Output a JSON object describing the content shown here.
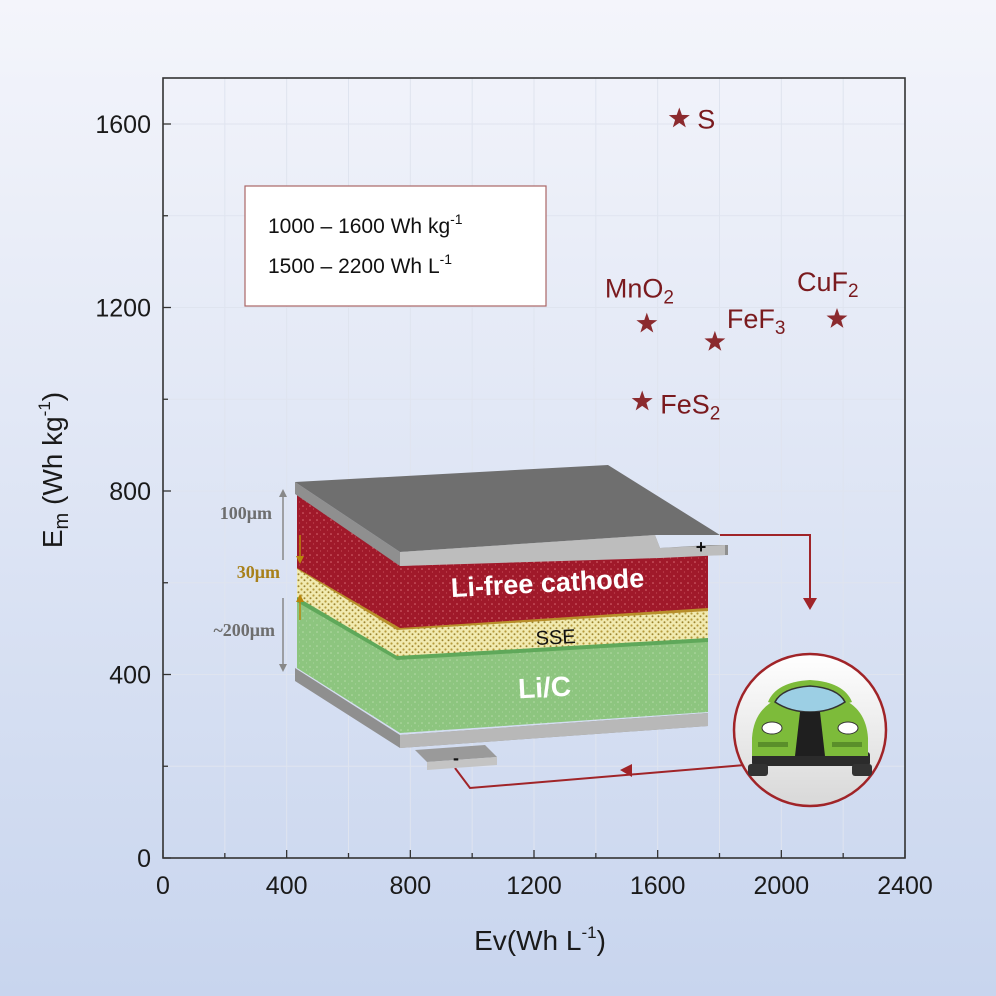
{
  "chart_data": {
    "type": "scatter",
    "xlabel_main": "Ev",
    "xlabel_unit": "(Wh L",
    "xlabel_exp": "-1",
    "xlabel_close": ")",
    "ylabel_main": "E",
    "ylabel_sub": "m",
    "ylabel_unit": " (Wh kg",
    "ylabel_exp": "-1",
    "ylabel_close": ")",
    "xlim": [
      0,
      2400
    ],
    "ylim": [
      0,
      1700
    ],
    "xticks": [
      0,
      400,
      800,
      1200,
      1600,
      2000,
      2400
    ],
    "yticks": [
      0,
      400,
      800,
      1200,
      1600
    ],
    "grid": true,
    "marker": "star",
    "marker_color": "#8b2a2e",
    "points": [
      {
        "label": "S",
        "sub": "",
        "x": 1670,
        "y": 1612
      },
      {
        "label": "MnO",
        "sub": "2",
        "x": 1565,
        "y": 1165
      },
      {
        "label": "FeF",
        "sub": "3",
        "x": 1785,
        "y": 1125
      },
      {
        "label": "CuF",
        "sub": "2",
        "x": 2180,
        "y": 1175
      },
      {
        "label": "FeS",
        "sub": "2",
        "x": 1550,
        "y": 995
      }
    ],
    "legend": {
      "line1_main": "1000 – 1600 Wh kg",
      "line1_exp": "-1",
      "line2_main": "1500 – 2200 Wh L",
      "line2_exp": "-1"
    }
  },
  "diagram": {
    "cathode_label": "Li-free cathode",
    "sse_label": "SSE",
    "anode_label": "Li/C",
    "dim_cathode": "100μm",
    "dim_sse": "30μm",
    "dim_anode": "~200μm",
    "plus": "+",
    "minus": "-"
  },
  "colors": {
    "background_top": "#f2f4fb",
    "background_bottom": "#c9d6ee",
    "cathode": "#a0192a",
    "sse": "#efe6a6",
    "anode": "#8cc47e",
    "plate": "#6b6b6b",
    "wire": "#a02428",
    "car_green": "#7dbb3a"
  }
}
